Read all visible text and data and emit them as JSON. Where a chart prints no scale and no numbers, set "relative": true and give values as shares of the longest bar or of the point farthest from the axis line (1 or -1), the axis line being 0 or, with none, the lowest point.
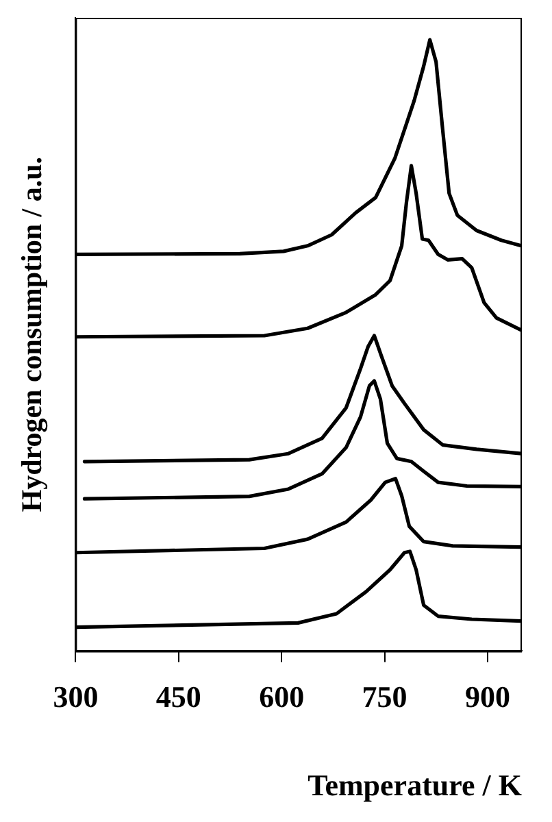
{
  "chart_data": {
    "type": "line",
    "xlabel": "Temperature / K",
    "ylabel": "Hydrogen consumption / a.u.",
    "relative": true,
    "xlim": [
      300,
      950
    ],
    "xticks": [
      300,
      450,
      600,
      750,
      900
    ],
    "legend": false,
    "grid": false,
    "marker": "none",
    "line_style": "solid",
    "series": [
      {
        "color": "#000000",
        "x": [
          300,
          539,
          603,
          638,
          673,
          708,
          737,
          765,
          793,
          807,
          816,
          825,
          835,
          844,
          856,
          884,
          920,
          949
        ],
        "values": [
          0.649,
          0.65,
          0.654,
          0.663,
          0.681,
          0.717,
          0.742,
          0.806,
          0.9,
          0.957,
          1.0,
          0.964,
          0.849,
          0.749,
          0.713,
          0.688,
          0.672,
          0.663
        ]
      },
      {
        "color": "#000000",
        "x": [
          300,
          575,
          638,
          694,
          737,
          758,
          775,
          782,
          789,
          796,
          805,
          814,
          828,
          842,
          863,
          877,
          895,
          913,
          949
        ],
        "values": [
          0.514,
          0.516,
          0.528,
          0.554,
          0.583,
          0.606,
          0.663,
          0.735,
          0.794,
          0.749,
          0.674,
          0.672,
          0.649,
          0.64,
          0.642,
          0.627,
          0.57,
          0.545,
          0.525
        ]
      },
      {
        "color": "#000000",
        "x": [
          313,
          553,
          610,
          659,
          694,
          715,
          726,
          735,
          745,
          761,
          779,
          807,
          835,
          884,
          949
        ],
        "values": [
          0.31,
          0.313,
          0.323,
          0.348,
          0.398,
          0.462,
          0.498,
          0.516,
          0.484,
          0.434,
          0.405,
          0.362,
          0.337,
          0.33,
          0.323
        ]
      },
      {
        "color": "#000000",
        "x": [
          313,
          553,
          610,
          659,
          694,
          715,
          728,
          735,
          744,
          754,
          768,
          789,
          807,
          828,
          870,
          949
        ],
        "values": [
          0.249,
          0.253,
          0.265,
          0.29,
          0.333,
          0.383,
          0.434,
          0.442,
          0.412,
          0.34,
          0.315,
          0.31,
          0.294,
          0.276,
          0.27,
          0.269
        ]
      },
      {
        "color": "#000000",
        "x": [
          300,
          575,
          638,
          694,
          730,
          751,
          766,
          775,
          786,
          807,
          849,
          949
        ],
        "values": [
          0.161,
          0.168,
          0.183,
          0.211,
          0.247,
          0.276,
          0.282,
          0.254,
          0.204,
          0.179,
          0.172,
          0.17
        ]
      },
      {
        "color": "#000000",
        "x": [
          300,
          624,
          680,
          723,
          758,
          779,
          787,
          796,
          807,
          828,
          877,
          949
        ],
        "values": [
          0.039,
          0.046,
          0.061,
          0.097,
          0.133,
          0.161,
          0.163,
          0.133,
          0.075,
          0.057,
          0.052,
          0.049
        ]
      }
    ]
  }
}
